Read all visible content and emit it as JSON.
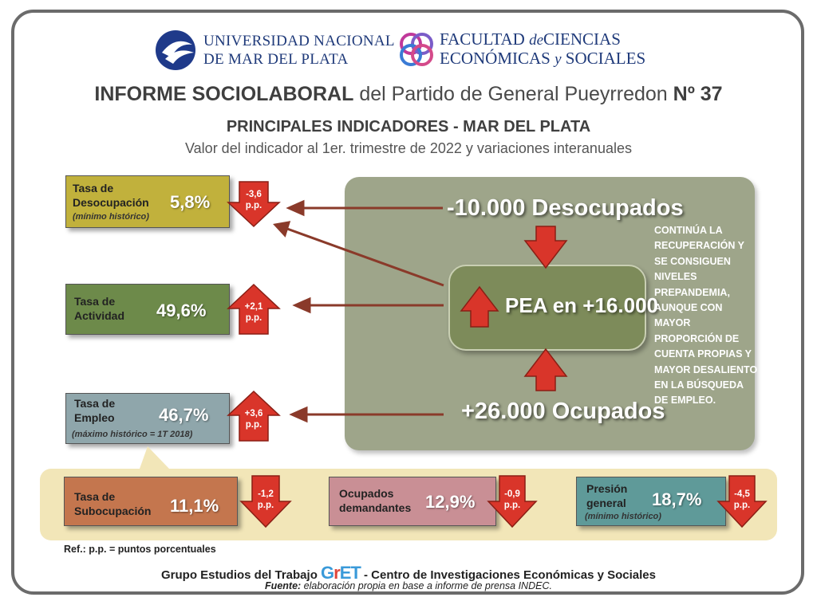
{
  "header": {
    "university": "Universidad Nacional de Mar del Plata",
    "uni_line1": "UNIVERSIDAD NACIONAL",
    "uni_line2": "DE MAR DEL PLATA",
    "faculty_line1_a": "FACULTAD ",
    "faculty_line1_b": "de",
    "faculty_line1_c": "CIENCIAS",
    "faculty_line2_a": "ECONÓMICAS ",
    "faculty_line2_b": "y",
    "faculty_line2_c": " SOCIALES"
  },
  "title": {
    "bold": "INFORME SOCIOLABORAL",
    "middle": " del Partido de General Pueyrredon ",
    "number": "Nº 37"
  },
  "subtitle": "PRINCIPALES INDICADORES - MAR DEL PLATA",
  "period": "Valor del indicador al 1er. trimestre de 2022 y variaciones interanuales",
  "panel": {
    "desocupados": "-10.000 Desocupados",
    "pea": "PEA en +16.000",
    "ocupados": "+26.000 Ocupados",
    "note": "CONTINÚA LA RECUPERACIÓN Y SE CONSIGUEN NIVELES PREPANDEMIA, AUNQUE CON MAYOR PROPORCIÓN DE CUENTA PROPIAS Y MAYOR DESALIENTO EN LA BÚSQUEDA DE EMPLEO."
  },
  "indicators": {
    "desocupacion": {
      "label1": "Tasa de",
      "label2": "Desocupación",
      "note": "(mínimo histórico)",
      "value": "5,8%",
      "change": "-3,6",
      "unit": "p.p.",
      "color": "#c1b13c"
    },
    "actividad": {
      "label1": "Tasa de",
      "label2": "Actividad",
      "value": "49,6%",
      "change": "+2,1",
      "unit": "p.p.",
      "color": "#6d8a4a"
    },
    "empleo": {
      "label1": "Tasa de",
      "label2": "Empleo",
      "note": "(máximo histórico = 1T 2018)",
      "value": "46,7%",
      "change": "+3,6",
      "unit": "p.p.",
      "color": "#8fa6ab"
    },
    "subocupacion": {
      "label1": "Tasa de",
      "label2": "Subocupación",
      "value": "11,1%",
      "change": "-1,2",
      "unit": "p.p.",
      "color": "#c4764e"
    },
    "ocupados_demandantes": {
      "label1": "Ocupados",
      "label2": "demandantes",
      "value": "12,9%",
      "change": "-0,9",
      "unit": "p.p.",
      "color": "#c98f95"
    },
    "presion": {
      "label1": "Presión",
      "label2": "general",
      "note": "(mínimo histórico)",
      "value": "18,7%",
      "change": "-4,5",
      "unit": "p.p.",
      "color": "#5f9a99"
    }
  },
  "reference": "Ref.: p.p. = puntos porcentuales",
  "footer": {
    "left": "Grupo Estudios del Trabajo ",
    "logo_g": "G",
    "logo_r": "r",
    "logo_et": "ET",
    "right": " - Centro de Investigaciones Económicas y Sociales"
  },
  "source": {
    "label": "Fuente:",
    "text": " elaboración propia en base a informe de prensa INDEC."
  },
  "colors": {
    "arrow": "#d9352a",
    "panel": "#9ea58a",
    "pea": "#7d8b5a",
    "connector": "#8a3a2a",
    "band": "#f2e6b8"
  }
}
